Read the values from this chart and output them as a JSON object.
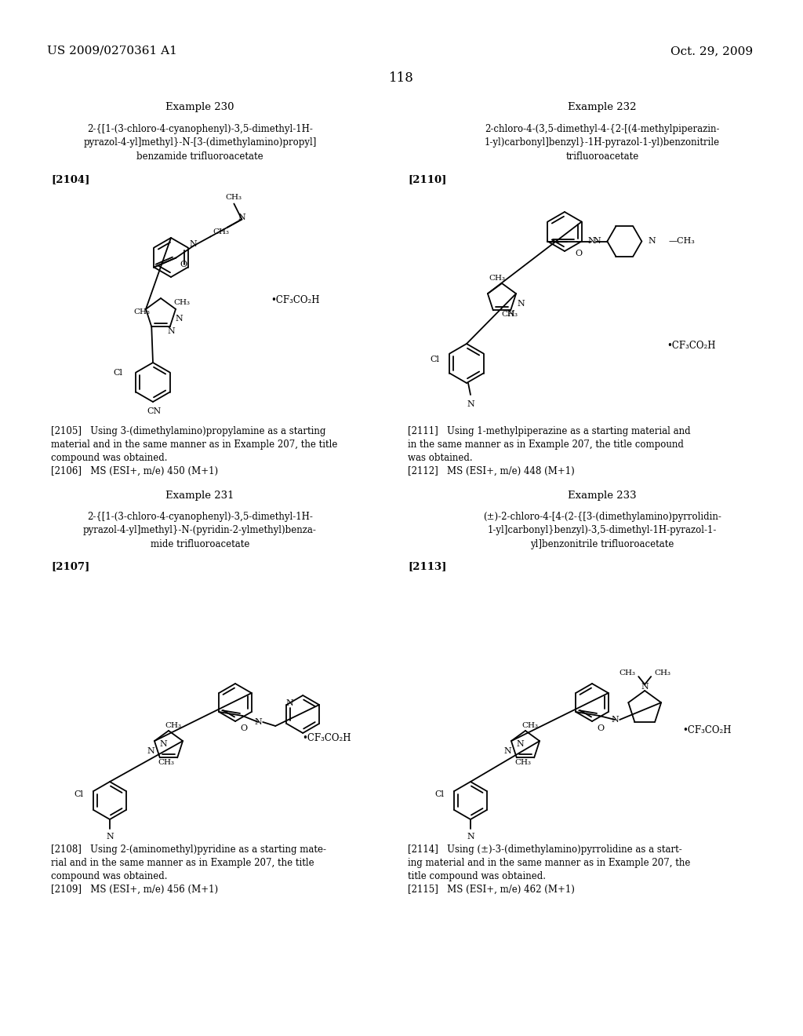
{
  "page_header_left": "US 2009/0270361 A1",
  "page_header_right": "Oct. 29, 2009",
  "page_number": "118",
  "background_color": "#ffffff",
  "text_color": "#000000",
  "ex230_title": "Example 230",
  "ex230_name": "2-{[1-(3-chloro-4-cyanophenyl)-3,5-dimethyl-1H-\npyrazol-4-yl]methyl}-N-[3-(dimethylamino)propyl]\nbenzamide trifluoroacetate",
  "ex230_tag": "[2104]",
  "ex230_note1": "[2105]   Using 3-(dimethylamino)propylamine as a starting\nmaterial and in the same manner as in Example 207, the title\ncompound was obtained.",
  "ex230_note2": "[2106]   MS (ESI+, m/e) 450 (M+1)",
  "ex231_title": "Example 231",
  "ex231_name": "2-{[1-(3-chloro-4-cyanophenyl)-3,5-dimethyl-1H-\npyrazol-4-yl]methyl}-N-(pyridin-2-ylmethyl)benza-\nmide trifluoroacetate",
  "ex231_tag": "[2107]",
  "ex231_note1": "[2108]   Using 2-(aminomethyl)pyridine as a starting mate-\nrial and in the same manner as in Example 207, the title\ncompound was obtained.",
  "ex231_note2": "[2109]   MS (ESI+, m/e) 456 (M+1)",
  "ex232_title": "Example 232",
  "ex232_name": "2-chloro-4-(3,5-dimethyl-4-{2-[(4-methylpiperazin-\n1-yl)carbonyl]benzyl}-1H-pyrazol-1-yl)benzonitrile\ntrifluoroacetate",
  "ex232_tag": "[2110]",
  "ex232_note1": "[2111]   Using 1-methylpiperazine as a starting material and\nin the same manner as in Example 207, the title compound\nwas obtained.",
  "ex232_note2": "[2112]   MS (ESI+, m/e) 448 (M+1)",
  "ex233_title": "Example 233",
  "ex233_name": "(±)-2-chloro-4-[4-(2-{[3-(dimethylamino)pyrrolidin-\n1-yl]carbonyl}benzyl)-3,5-dimethyl-1H-pyrazol-1-\nyl]benzonitrile trifluoroacetate",
  "ex233_tag": "[2113]",
  "ex233_note1": "[2114]   Using (±)-3-(dimethylamino)pyrrolidine as a start-\ning material and in the same manner as in Example 207, the\ntitle compound was obtained.",
  "ex233_note2": "[2115]   MS (ESI+, m/e) 462 (M+1)"
}
